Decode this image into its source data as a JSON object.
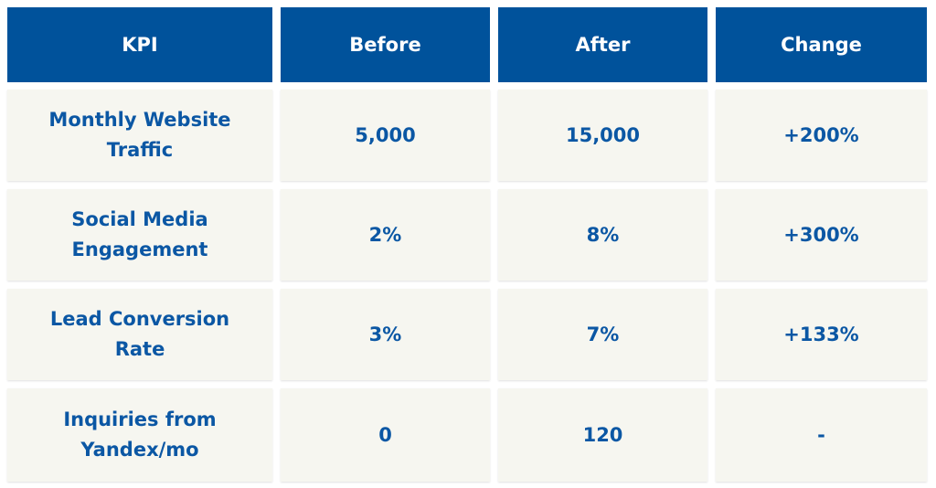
{
  "table": {
    "header": [
      "KPI",
      "Before",
      "After",
      "Change"
    ],
    "rows": [
      [
        "Monthly Website Traffic",
        "5,000",
        "15,000",
        "+200%"
      ],
      [
        "Social Media Engagement",
        "2%",
        "8%",
        "+300%"
      ],
      [
        "Lead Conversion Rate",
        "3%",
        "7%",
        "+133%"
      ],
      [
        "Inquiries from Yandex/mo",
        "0",
        "120",
        "-"
      ]
    ]
  }
}
